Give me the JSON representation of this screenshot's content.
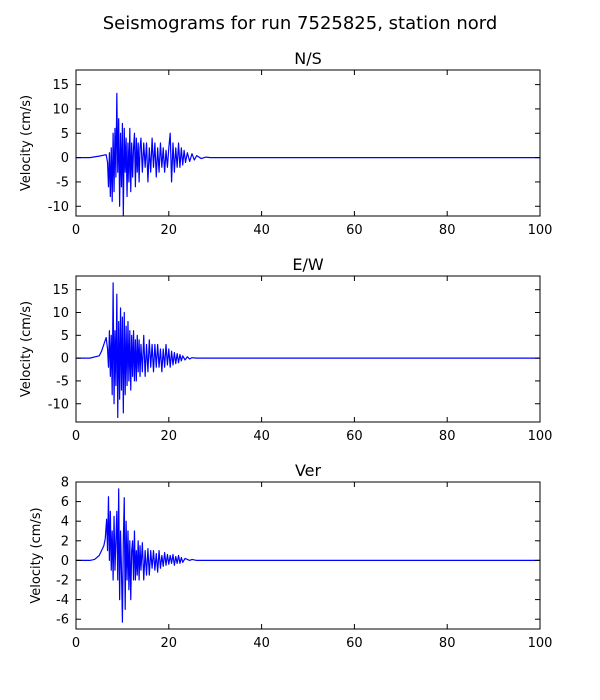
{
  "figure": {
    "suptitle": "Seismograms for run 7525825, station nord"
  },
  "chart_data": [
    {
      "type": "line",
      "title": "N/S",
      "xlabel": "",
      "ylabel": "Velocity (cm/s)",
      "xlim": [
        0,
        100
      ],
      "ylim": [
        -12,
        18
      ],
      "xticks": [
        0,
        20,
        40,
        60,
        80,
        100
      ],
      "yticks": [
        -10,
        -5,
        0,
        5,
        10,
        15
      ],
      "grid": false,
      "color": "#0000ff",
      "series": [
        {
          "x": [
            0,
            3,
            5,
            6.5,
            6.8,
            7.0,
            7.2,
            7.4,
            7.6,
            7.8,
            8.0,
            8.2,
            8.4,
            8.6,
            8.8,
            9.0,
            9.2,
            9.4,
            9.6,
            9.8,
            10.0,
            10.2,
            10.4,
            10.6,
            10.8,
            11.0,
            11.2,
            11.4,
            11.6,
            11.8,
            12.0,
            12.2,
            12.4,
            12.6,
            12.8,
            13.0,
            13.2,
            13.4,
            13.6,
            13.8,
            14.0,
            14.3,
            14.6,
            14.9,
            15.2,
            15.5,
            15.8,
            16.1,
            16.4,
            16.7,
            17.0,
            17.3,
            17.6,
            17.9,
            18.2,
            18.5,
            18.8,
            19.1,
            19.4,
            19.7,
            20.0,
            20.3,
            20.6,
            20.9,
            21.2,
            21.5,
            21.8,
            22.1,
            22.4,
            22.7,
            23.0,
            23.3,
            23.6,
            24.0,
            24.5,
            25.0,
            25.5,
            26,
            27,
            28,
            29,
            30,
            32,
            35,
            40,
            50,
            60,
            70,
            80,
            90,
            100
          ],
          "y": [
            0,
            0,
            0.3,
            0.6,
            -1,
            -6,
            1,
            -8,
            2,
            -9,
            5,
            -7,
            6,
            -4,
            13.2,
            -3,
            8,
            -10,
            5,
            -6,
            7,
            -12,
            6,
            -3,
            4,
            -8,
            3,
            -5,
            6,
            -7,
            3,
            -4,
            2,
            5,
            -6,
            4,
            -3,
            3,
            -5,
            2,
            4,
            -3,
            3,
            -2,
            3,
            -5,
            2,
            -3,
            4,
            -2,
            3,
            -4,
            2,
            -3,
            3,
            -2,
            2,
            -3,
            1.5,
            -2,
            2,
            5,
            -5,
            3,
            -3,
            2,
            -2,
            3,
            -2,
            2,
            -1.5,
            1.5,
            -1,
            1,
            -0.8,
            0.8,
            -0.5,
            0.4,
            -0.2,
            0.1,
            0,
            0,
            0,
            0,
            0,
            0,
            0,
            0,
            0,
            0,
            0
          ]
        }
      ]
    },
    {
      "type": "line",
      "title": "E/W",
      "xlabel": "",
      "ylabel": "Velocity (cm/s)",
      "xlim": [
        0,
        100
      ],
      "ylim": [
        -14,
        18
      ],
      "xticks": [
        0,
        20,
        40,
        60,
        80,
        100
      ],
      "yticks": [
        -10,
        -5,
        0,
        5,
        10,
        15
      ],
      "grid": false,
      "color": "#0000ff",
      "series": [
        {
          "x": [
            0,
            3,
            5,
            5.5,
            6.0,
            6.5,
            6.8,
            7.0,
            7.2,
            7.4,
            7.6,
            7.8,
            8.0,
            8.2,
            8.4,
            8.6,
            8.8,
            9.0,
            9.2,
            9.4,
            9.6,
            9.8,
            10.0,
            10.2,
            10.4,
            10.6,
            10.8,
            11.0,
            11.2,
            11.4,
            11.6,
            11.8,
            12.0,
            12.2,
            12.4,
            12.6,
            12.8,
            13.0,
            13.2,
            13.4,
            13.6,
            13.8,
            14.0,
            14.3,
            14.6,
            14.9,
            15.2,
            15.5,
            15.8,
            16.1,
            16.4,
            16.7,
            17.0,
            17.3,
            17.6,
            17.9,
            18.2,
            18.5,
            18.8,
            19.1,
            19.4,
            19.7,
            20.0,
            20.3,
            20.6,
            20.9,
            21.2,
            21.5,
            21.8,
            22.1,
            22.4,
            22.7,
            23.0,
            23.5,
            24.0,
            24.5,
            25,
            26,
            27,
            28,
            29,
            30,
            32,
            35,
            40,
            50,
            60,
            70,
            80,
            90,
            100
          ],
          "y": [
            0,
            0,
            0.5,
            1.5,
            3,
            4.5,
            2,
            -2,
            6,
            -4,
            5,
            -8,
            16.5,
            -10,
            6,
            -6,
            14,
            -13,
            8,
            -9,
            11,
            -7,
            9,
            -12,
            10,
            -8,
            7,
            -6,
            8,
            -5,
            6,
            -7,
            5,
            -4,
            6,
            -5,
            4,
            -5,
            5,
            -3,
            4,
            -4,
            3,
            -3,
            5,
            -4,
            3,
            -3,
            4,
            -2,
            3,
            -3,
            3,
            -2,
            3,
            -2,
            2,
            -3,
            2,
            -2,
            3,
            -1.5,
            2,
            -2,
            1.5,
            -1.5,
            1.2,
            -1.2,
            1,
            -1,
            0.8,
            -0.6,
            0.5,
            -0.4,
            0.3,
            -0.2,
            0.1,
            0,
            0,
            0,
            0,
            0,
            0,
            0,
            0,
            0,
            0,
            0,
            0,
            0,
            0
          ]
        }
      ]
    },
    {
      "type": "line",
      "title": "Ver",
      "xlabel": "",
      "ylabel": "Velocity (cm/s)",
      "xlim": [
        0,
        100
      ],
      "ylim": [
        -7,
        8
      ],
      "xticks": [
        0,
        20,
        40,
        60,
        80,
        100
      ],
      "yticks": [
        -6,
        -4,
        -2,
        0,
        2,
        4,
        6,
        8
      ],
      "grid": false,
      "color": "#0000ff",
      "series": [
        {
          "x": [
            0,
            3,
            4,
            5,
            5.5,
            6.0,
            6.3,
            6.6,
            6.8,
            7.0,
            7.2,
            7.4,
            7.6,
            7.8,
            8.0,
            8.2,
            8.4,
            8.6,
            8.8,
            9.0,
            9.2,
            9.4,
            9.6,
            9.8,
            10.0,
            10.2,
            10.4,
            10.6,
            10.8,
            11.0,
            11.2,
            11.4,
            11.6,
            11.8,
            12.0,
            12.2,
            12.4,
            12.6,
            12.8,
            13.0,
            13.2,
            13.4,
            13.6,
            13.8,
            14.0,
            14.3,
            14.6,
            14.9,
            15.2,
            15.5,
            15.8,
            16.1,
            16.4,
            16.7,
            17.0,
            17.3,
            17.6,
            17.9,
            18.2,
            18.5,
            18.8,
            19.1,
            19.4,
            19.7,
            20.0,
            20.3,
            20.6,
            20.9,
            21.2,
            21.5,
            21.8,
            22.1,
            22.4,
            22.7,
            23.0,
            23.5,
            24.0,
            24.5,
            25,
            26,
            27,
            28,
            30,
            32,
            35,
            40,
            50,
            60,
            70,
            80,
            90,
            100
          ],
          "y": [
            0,
            0,
            0.1,
            0.5,
            1,
            1.5,
            2.2,
            4.2,
            1,
            6.5,
            0,
            5,
            -1,
            3,
            -2,
            4.5,
            -1,
            2,
            5,
            -2,
            7.3,
            -4,
            3,
            -1,
            -6.3,
            2,
            6.4,
            -5,
            4,
            -2,
            3,
            -3,
            2,
            -4,
            1,
            2,
            -2,
            3,
            -2,
            1,
            -1.5,
            2,
            -2,
            1.5,
            -1,
            1.8,
            -2,
            1,
            -1.5,
            1.2,
            -1.5,
            1,
            -0.8,
            1,
            -1,
            0.7,
            -1.2,
            1,
            -0.8,
            0.5,
            -0.6,
            0.8,
            -0.5,
            0.6,
            -0.4,
            0.5,
            -0.3,
            0.6,
            -0.5,
            0.4,
            -0.3,
            0.5,
            -0.3,
            0.3,
            -0.2,
            0.2,
            0.1,
            0,
            0.1,
            0,
            0,
            0,
            0,
            0,
            0,
            0,
            0,
            0,
            0,
            0,
            0,
            0
          ]
        }
      ]
    }
  ]
}
